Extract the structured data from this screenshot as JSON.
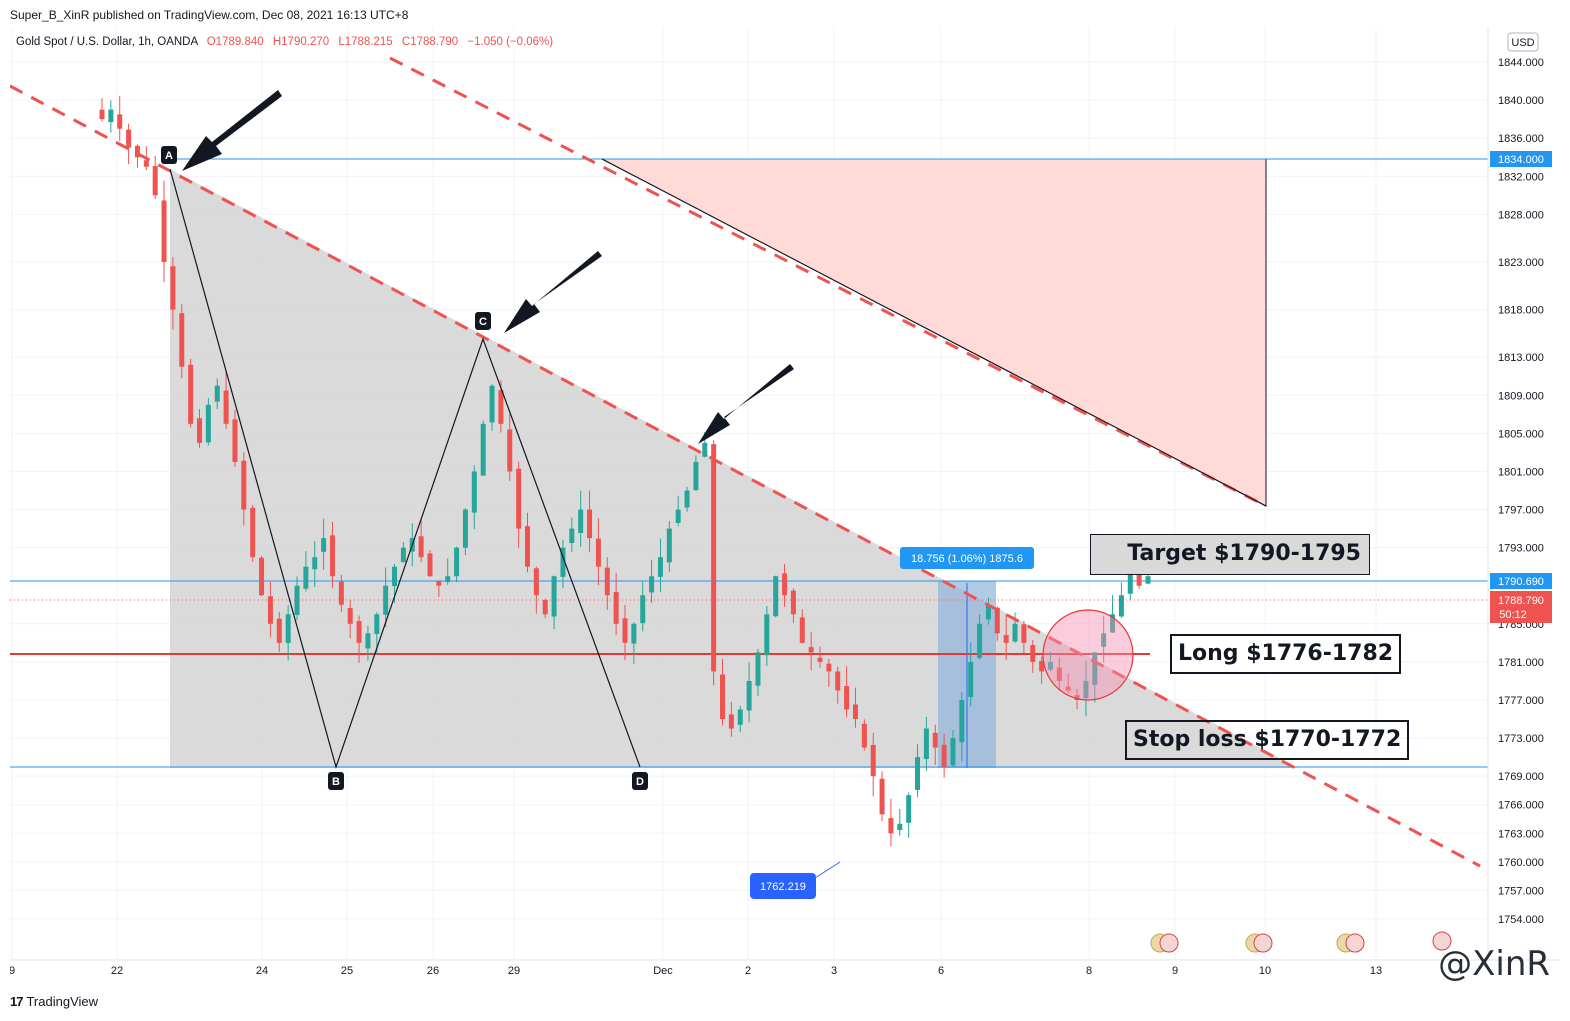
{
  "header": {
    "publish_text": "Super_B_XinR published on TradingView.com, Dec 08, 2021 16:13 UTC+8"
  },
  "chart_data": {
    "type": "candlestick",
    "symbol_line": {
      "name": "Gold Spot / U.S. Dollar, 1h, OANDA",
      "open": "O1789.840",
      "high": "H1790.270",
      "low": "L1788.215",
      "close": "C1788.790",
      "change": "−1.050 (−0.06%)"
    },
    "currency": "USD",
    "y_ticks": [
      "1844.000",
      "1840.000",
      "1836.000",
      "1832.000",
      "1828.000",
      "1823.000",
      "1818.000",
      "1813.000",
      "1809.000",
      "1805.000",
      "1801.000",
      "1797.000",
      "1793.000",
      "1785.000",
      "1781.000",
      "1777.000",
      "1773.000",
      "1769.000",
      "1766.000",
      "1763.000",
      "1760.000",
      "1757.000",
      "1754.000"
    ],
    "x_ticks": [
      "9",
      "22",
      "24",
      "25",
      "26",
      "29",
      "Dec",
      "2",
      "3",
      "6",
      "8",
      "9",
      "10",
      "13"
    ],
    "price_labels": {
      "level_1834": "1834.000",
      "level_1790": "1790.690",
      "current": "1788.790",
      "countdown": "50:12"
    },
    "pattern_points": [
      "A",
      "B",
      "C",
      "D"
    ],
    "measure_label": "18.756 (1.06%) 1875.6",
    "low_label": "1762.219",
    "notes": {
      "target": "Target $1790-1795",
      "long": "Long $1776-1782",
      "stop": "Stop loss $1770-1772"
    },
    "colors": {
      "bull": "#26a69a",
      "bear": "#ef5350",
      "trendline": "#ef5350",
      "horizontal": "#2196f3",
      "red_line": "#e53935",
      "triangle_fill": "#d3d3d3",
      "red_zone": "#ffdad7",
      "measure": "#90b4dc",
      "label_bg": "#2962ff"
    },
    "candle_series": [
      1838,
      1839,
      1837,
      1835,
      1834,
      1833,
      1830,
      1823,
      1818,
      1812,
      1806,
      1804,
      1808,
      1810,
      1806,
      1802,
      1797,
      1792,
      1788,
      1785,
      1783,
      1786,
      1789,
      1791,
      1792,
      1794,
      1790,
      1787,
      1785,
      1783,
      1784,
      1786,
      1789,
      1791,
      1793,
      1794,
      1792,
      1790,
      1789,
      1790,
      1793,
      1797,
      1801,
      1806,
      1810,
      1806,
      1801,
      1795,
      1791,
      1788,
      1786,
      1790,
      1793,
      1795,
      1797,
      1794,
      1791,
      1788,
      1785,
      1783,
      1785,
      1788,
      1790,
      1792,
      1795,
      1797,
      1799,
      1802,
      1804,
      1780,
      1775,
      1774,
      1776,
      1779,
      1782,
      1786,
      1790,
      1788,
      1786,
      1783,
      1782,
      1781,
      1780,
      1778,
      1776,
      1775,
      1772,
      1769,
      1765,
      1763,
      1764,
      1767,
      1771,
      1774,
      1772,
      1770,
      1773,
      1777,
      1781,
      1785,
      1787,
      1784,
      1783,
      1785,
      1783,
      1781,
      1780,
      1781,
      1779,
      1778,
      1777,
      1779,
      1782,
      1784,
      1786,
      1788,
      1791,
      1789,
      1790
    ]
  },
  "footer": {
    "brand": "TradingView",
    "watermark": "@XinR"
  }
}
